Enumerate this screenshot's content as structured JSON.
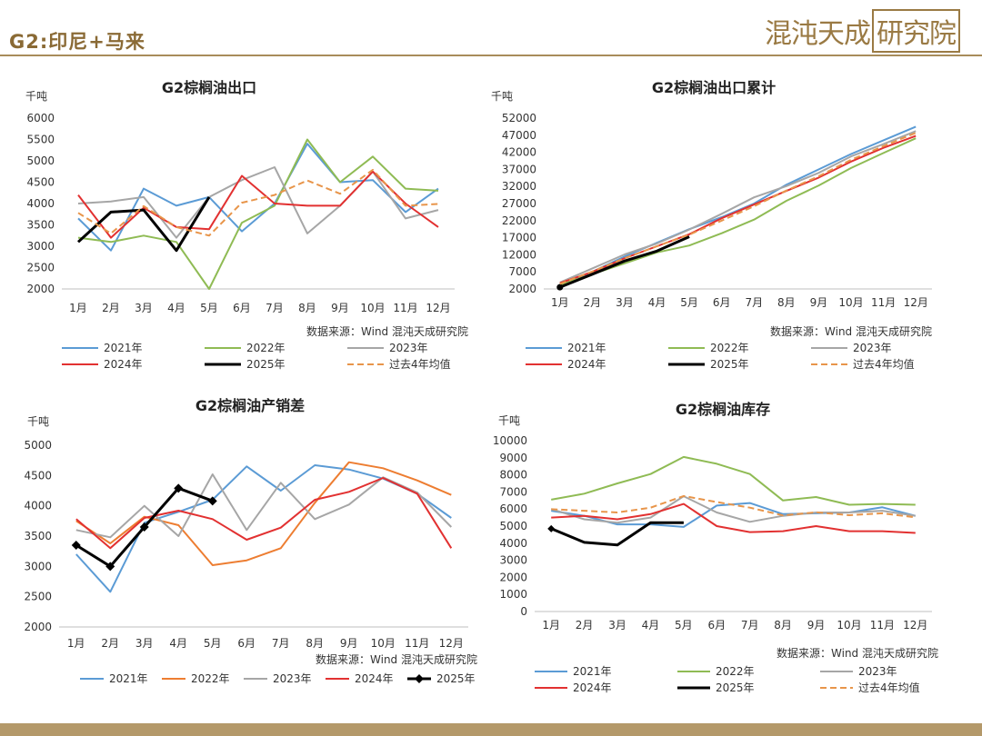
{
  "header": {
    "title": "G2:印尼+马来",
    "brand_main": "混沌天成",
    "brand_box": "研究院"
  },
  "chart_data": [
    {
      "id": "export",
      "type": "line",
      "title": "G2棕榈油出口",
      "ylabel": "千吨",
      "ylim": [
        2000,
        6000
      ],
      "yticks": [
        2000,
        2500,
        3000,
        3500,
        4000,
        4500,
        5000,
        5500,
        6000
      ],
      "categories": [
        "1月",
        "2月",
        "3月",
        "4月",
        "5月",
        "6月",
        "7月",
        "8月",
        "9月",
        "10月",
        "11月",
        "12月"
      ],
      "source": "数据来源：Wind 混沌天成研究院",
      "series": [
        {
          "name": "2021年",
          "color": "#5b9bd5",
          "style": "solid",
          "values": [
            3650,
            2900,
            4350,
            3950,
            4150,
            3350,
            4000,
            5400,
            4500,
            4550,
            3800,
            4350
          ]
        },
        {
          "name": "2022年",
          "color": "#8fbb54",
          "style": "solid",
          "values": [
            3200,
            3100,
            3250,
            3100,
            2000,
            3550,
            3950,
            5500,
            4500,
            5100,
            4350,
            4300
          ]
        },
        {
          "name": "2023年",
          "color": "#a6a6a6",
          "style": "solid",
          "values": [
            4000,
            4050,
            4150,
            3200,
            4150,
            4550,
            4850,
            3300,
            3950,
            4750,
            3650,
            3850
          ]
        },
        {
          "name": "2024年",
          "color": "#e23131",
          "style": "solid",
          "values": [
            4200,
            3200,
            3900,
            3450,
            3400,
            4650,
            4000,
            3950,
            3950,
            4750,
            4000,
            3450
          ]
        },
        {
          "name": "2025年",
          "color": "#000000",
          "style": "bold",
          "values": [
            3100,
            3800,
            3850,
            2900,
            4150,
            null,
            null,
            null,
            null,
            null,
            null,
            null
          ]
        },
        {
          "name": "过去4年均值",
          "color": "#e8954a",
          "style": "dash",
          "values": [
            3780,
            3300,
            3940,
            3450,
            3250,
            4020,
            4200,
            4540,
            4230,
            4790,
            3950,
            3990
          ]
        }
      ]
    },
    {
      "id": "cumulative",
      "type": "line",
      "title": "G2棕榈油出口累计",
      "ylabel": "千吨",
      "ylim": [
        2000,
        52000
      ],
      "yticks": [
        2000,
        7000,
        12000,
        17000,
        22000,
        27000,
        32000,
        37000,
        42000,
        47000,
        52000
      ],
      "categories": [
        "1月",
        "2月",
        "3月",
        "4月",
        "5月",
        "6月",
        "7月",
        "8月",
        "9月",
        "10月",
        "11月",
        "12月"
      ],
      "source": "数据来源：Wind  混沌天成研究院",
      "series": [
        {
          "name": "2021年",
          "color": "#5b9bd5",
          "style": "solid",
          "values": [
            3300,
            7000,
            11500,
            15500,
            19500,
            23000,
            27000,
            32500,
            37000,
            41500,
            45500,
            49500
          ]
        },
        {
          "name": "2022年",
          "color": "#8fbb54",
          "style": "solid",
          "values": [
            3200,
            6300,
            9500,
            12700,
            14700,
            18300,
            22300,
            27800,
            32300,
            37400,
            41800,
            46100
          ]
        },
        {
          "name": "2023年",
          "color": "#a6a6a6",
          "style": "solid",
          "values": [
            3900,
            8000,
            12100,
            15300,
            19400,
            24000,
            28800,
            32100,
            36000,
            40800,
            44400,
            48200
          ]
        },
        {
          "name": "2024年",
          "color": "#e23131",
          "style": "solid",
          "values": [
            3700,
            7000,
            11000,
            14500,
            18000,
            22700,
            26700,
            30700,
            34600,
            39300,
            43300,
            46800
          ]
        },
        {
          "name": "2025年",
          "color": "#000000",
          "style": "bold",
          "values": [
            2500,
            6300,
            10200,
            13100,
            17300,
            null,
            null,
            null,
            null,
            null,
            null,
            null
          ]
        },
        {
          "name": "过去4年均值",
          "color": "#e8954a",
          "style": "dash",
          "values": [
            3500,
            7100,
            11000,
            14500,
            17900,
            22000,
            26200,
            30800,
            35000,
            39800,
            43800,
            47700
          ]
        }
      ]
    },
    {
      "id": "diff",
      "type": "line",
      "title": "G2棕榈油产销差",
      "ylabel": "千吨",
      "ylim": [
        2000,
        5000
      ],
      "yticks": [
        2000,
        2500,
        3000,
        3500,
        4000,
        4500,
        5000
      ],
      "categories": [
        "1月",
        "2月",
        "3月",
        "4月",
        "5月",
        "6月",
        "7月",
        "8月",
        "9月",
        "10月",
        "11月",
        "12月"
      ],
      "source": "数据来源：Wind 混沌天成研究院",
      "series": [
        {
          "name": "2021年",
          "color": "#5b9bd5",
          "style": "solid",
          "values": [
            3200,
            2580,
            3720,
            3900,
            4100,
            4650,
            4250,
            4670,
            4600,
            4450,
            4200,
            3800
          ]
        },
        {
          "name": "2022年",
          "color": "#ed7d31",
          "style": "solid",
          "values": [
            3750,
            3380,
            3820,
            3680,
            3020,
            3100,
            3300,
            4050,
            4720,
            4620,
            4420,
            4180
          ]
        },
        {
          "name": "2023年",
          "color": "#a6a6a6",
          "style": "solid",
          "values": [
            3600,
            3480,
            4000,
            3500,
            4520,
            3600,
            4380,
            3780,
            4020,
            4470,
            4220,
            3650
          ]
        },
        {
          "name": "2024年",
          "color": "#e23131",
          "style": "solid",
          "values": [
            3780,
            3300,
            3800,
            3920,
            3780,
            3440,
            3640,
            4100,
            4230,
            4460,
            4200,
            3300
          ]
        },
        {
          "name": "2025年",
          "color": "#000000",
          "style": "diamond",
          "values": [
            3350,
            3000,
            3650,
            4290,
            4080,
            null,
            null,
            null,
            null,
            null,
            null,
            null
          ]
        }
      ]
    },
    {
      "id": "stock",
      "type": "line",
      "title": "G2棕榈油库存",
      "ylabel": "千吨",
      "ylim": [
        0,
        10000
      ],
      "yticks": [
        0,
        1000,
        2000,
        3000,
        4000,
        5000,
        6000,
        7000,
        8000,
        9000,
        10000
      ],
      "categories": [
        "1月",
        "2月",
        "3月",
        "4月",
        "5月",
        "6月",
        "7月",
        "8月",
        "9月",
        "10月",
        "11月",
        "12月"
      ],
      "source": "数据来源：Wind  混沌天成研究院",
      "series": [
        {
          "name": "2021年",
          "color": "#5b9bd5",
          "style": "solid",
          "values": [
            5900,
            5600,
            5100,
            5100,
            4950,
            6200,
            6350,
            5700,
            5750,
            5800,
            6100,
            5600
          ]
        },
        {
          "name": "2022年",
          "color": "#8fbb54",
          "style": "solid",
          "values": [
            6550,
            6900,
            7500,
            8050,
            9050,
            8650,
            8050,
            6500,
            6700,
            6250,
            6300,
            6250
          ]
        },
        {
          "name": "2023年",
          "color": "#a6a6a6",
          "style": "solid",
          "values": [
            6000,
            5400,
            5200,
            5500,
            6750,
            5800,
            5250,
            5600,
            5800,
            5800,
            5900,
            5600
          ]
        },
        {
          "name": "2024年",
          "color": "#e23131",
          "style": "solid",
          "values": [
            5500,
            5600,
            5400,
            5700,
            6300,
            5000,
            4650,
            4700,
            5000,
            4700,
            4700,
            4600
          ]
        },
        {
          "name": "2025年",
          "color": "#000000",
          "style": "bold",
          "values": [
            4850,
            4050,
            3900,
            5200,
            5200,
            null,
            null,
            null,
            null,
            null,
            null,
            null
          ]
        },
        {
          "name": "过去4年均值",
          "color": "#e8954a",
          "style": "dash",
          "values": [
            5990,
            5900,
            5800,
            6080,
            6760,
            6410,
            6080,
            5630,
            5810,
            5640,
            5750,
            5510
          ]
        }
      ]
    }
  ]
}
